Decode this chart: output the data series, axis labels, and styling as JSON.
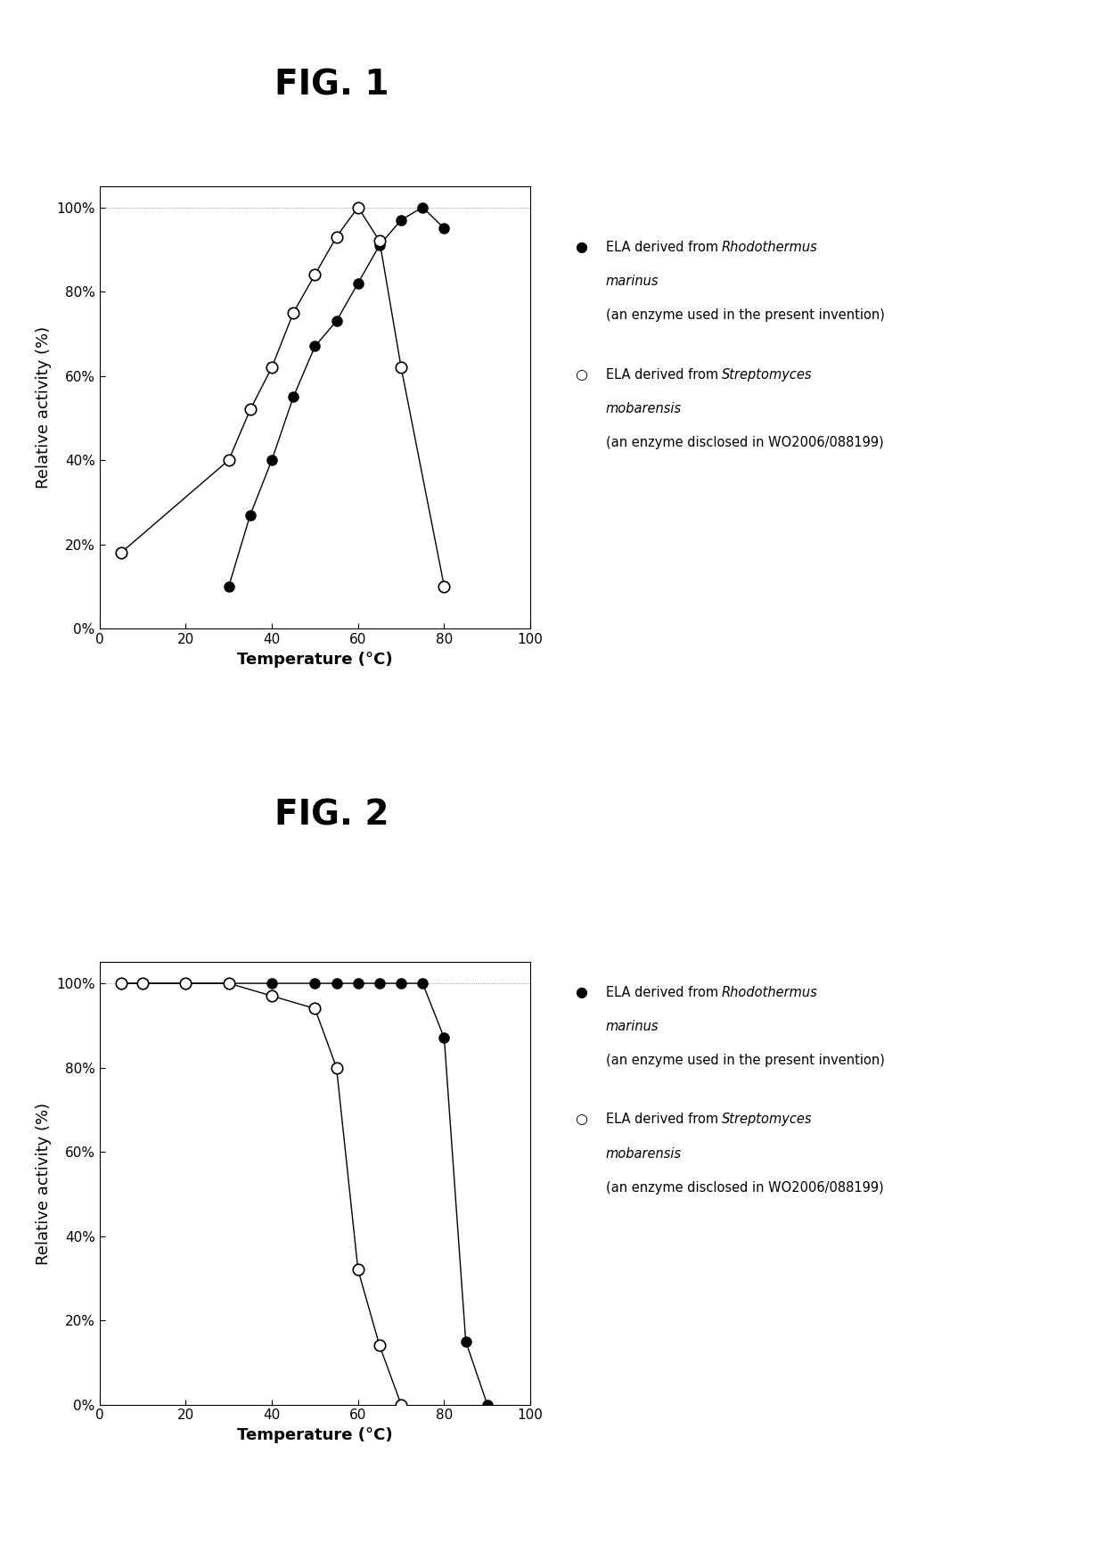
{
  "fig1": {
    "title": "FIG. 1",
    "xlabel": "Temperature (°C)",
    "ylabel": "Relative activity (%)",
    "xlim": [
      0,
      100
    ],
    "ylim": [
      0,
      105
    ],
    "xticks": [
      0,
      20,
      40,
      60,
      80,
      100
    ],
    "yticks": [
      0,
      20,
      40,
      60,
      80,
      100
    ],
    "ytick_labels": [
      "0%",
      "20%",
      "40%",
      "60%",
      "80%",
      "100%"
    ],
    "series_filled": {
      "x": [
        30,
        35,
        40,
        45,
        50,
        55,
        60,
        65,
        70,
        75,
        80
      ],
      "y": [
        10,
        27,
        40,
        55,
        67,
        73,
        82,
        91,
        97,
        100,
        95
      ]
    },
    "series_open": {
      "x": [
        5,
        30,
        35,
        40,
        45,
        50,
        55,
        60,
        65,
        70,
        80
      ],
      "y": [
        18,
        40,
        52,
        62,
        75,
        84,
        93,
        100,
        92,
        62,
        10
      ]
    }
  },
  "fig2": {
    "title": "FIG. 2",
    "xlabel": "Temperature (°C)",
    "ylabel": "Relative activity (%)",
    "xlim": [
      0,
      100
    ],
    "ylim": [
      0,
      105
    ],
    "xticks": [
      0,
      20,
      40,
      60,
      80,
      100
    ],
    "yticks": [
      0,
      20,
      40,
      60,
      80,
      100
    ],
    "ytick_labels": [
      "0%",
      "20%",
      "40%",
      "60%",
      "80%",
      "100%"
    ],
    "series_filled": {
      "x": [
        5,
        10,
        20,
        30,
        40,
        50,
        55,
        60,
        65,
        70,
        75,
        80,
        85,
        90
      ],
      "y": [
        100,
        100,
        100,
        100,
        100,
        100,
        100,
        100,
        100,
        100,
        100,
        87,
        15,
        0
      ]
    },
    "series_open": {
      "x": [
        5,
        10,
        20,
        30,
        40,
        50,
        55,
        60,
        65,
        70
      ],
      "y": [
        100,
        100,
        100,
        100,
        97,
        94,
        80,
        32,
        14,
        0
      ]
    }
  },
  "background_color": "#ffffff",
  "marker_size": 8,
  "line_width": 1.0,
  "font_size_title": 28,
  "font_size_axis_label": 13,
  "font_size_tick": 11,
  "font_size_legend": 10.5
}
